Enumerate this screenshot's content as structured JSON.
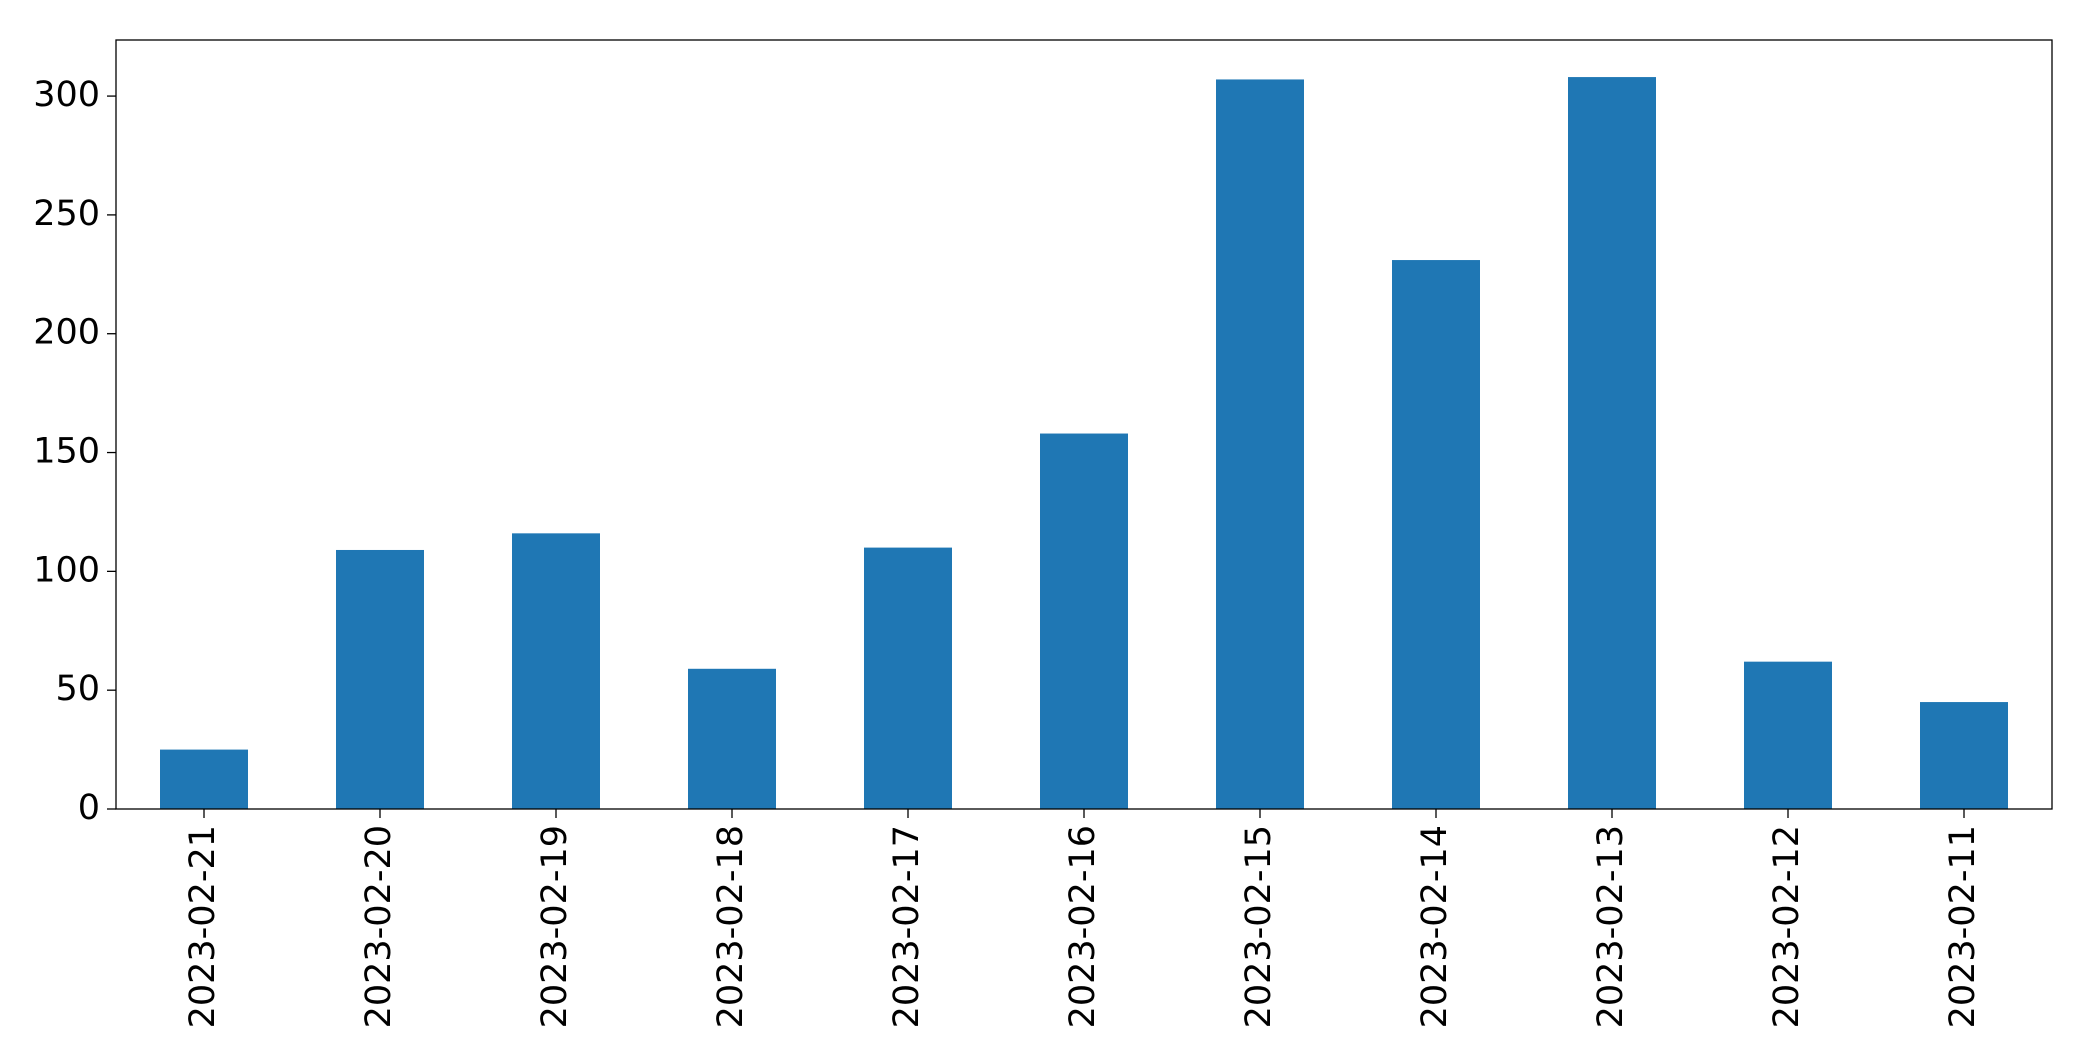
{
  "chart_data": {
    "type": "bar",
    "categories": [
      "2023-02-21",
      "2023-02-20",
      "2023-02-19",
      "2023-02-18",
      "2023-02-17",
      "2023-02-16",
      "2023-02-15",
      "2023-02-14",
      "2023-02-13",
      "2023-02-12",
      "2023-02-11"
    ],
    "values": [
      25,
      109,
      116,
      59,
      110,
      158,
      307,
      231,
      308,
      62,
      45
    ],
    "color": "#1f77b4",
    "ylim": [
      0,
      323.6
    ],
    "yticks": [
      0,
      50,
      100,
      150,
      200,
      250,
      300
    ],
    "grid": false
  }
}
